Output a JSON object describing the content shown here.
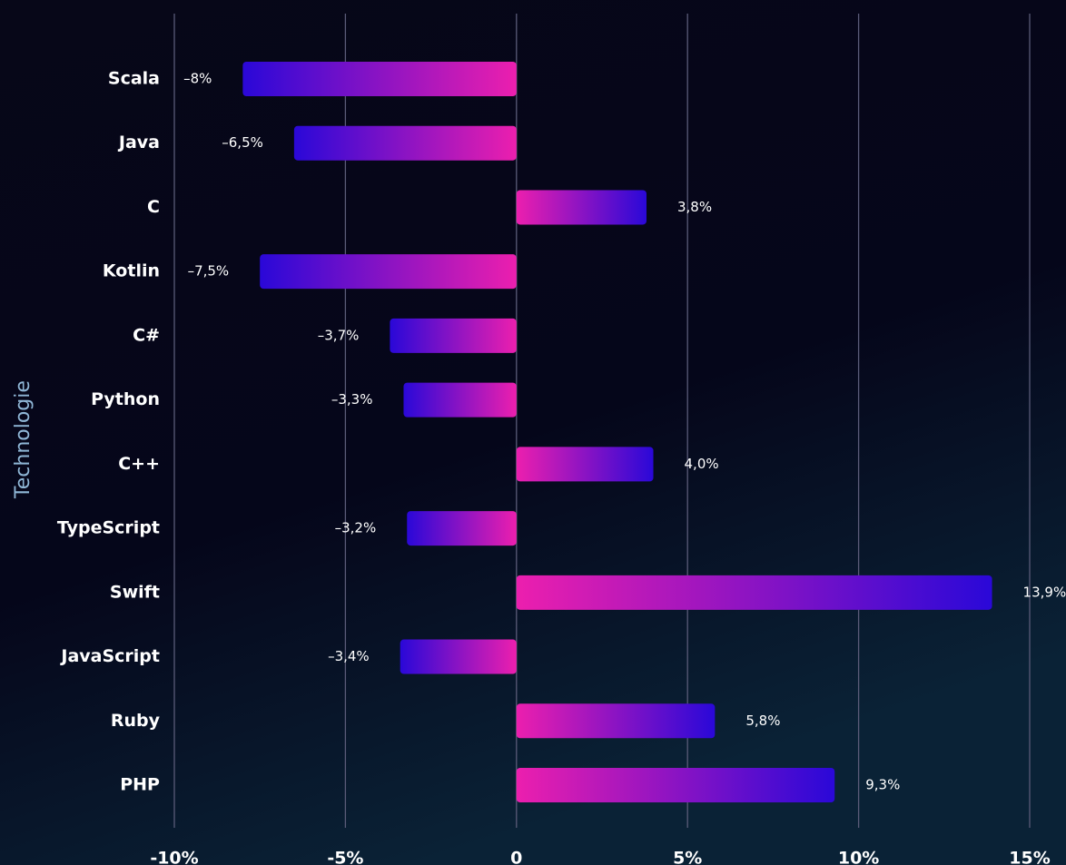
{
  "chart_data": {
    "type": "bar",
    "orientation": "horizontal",
    "y_label": "Technologie",
    "categories": [
      "Scala",
      "Java",
      "C",
      "Kotlin",
      "C#",
      "Python",
      "C++",
      "TypeScript",
      "Swift",
      "JavaScript",
      "Ruby",
      "PHP"
    ],
    "values": [
      -8,
      -6.5,
      3.8,
      -7.5,
      -3.7,
      -3.3,
      4.0,
      -3.2,
      13.9,
      -3.4,
      5.8,
      9.3
    ],
    "value_labels": [
      "–8%",
      "–6,5%",
      "3,8%",
      "–7,5%",
      "–3,7%",
      "–3,3%",
      "4,0%",
      "–3,2%",
      "13,9%",
      "–3,4%",
      "5,8%",
      "9,3%"
    ],
    "xlim": [
      -10,
      15
    ],
    "xticks": [
      {
        "value": -10,
        "label": "-10%"
      },
      {
        "value": -5,
        "label": "-5%"
      },
      0,
      {
        "value": 5,
        "label": "5%"
      },
      {
        "value": 10,
        "label": "10%"
      },
      {
        "value": 15,
        "label": "15%"
      }
    ],
    "grid": true,
    "gradient": {
      "near_zero": "#ec1fae",
      "far_end": "#2a08d8"
    }
  }
}
